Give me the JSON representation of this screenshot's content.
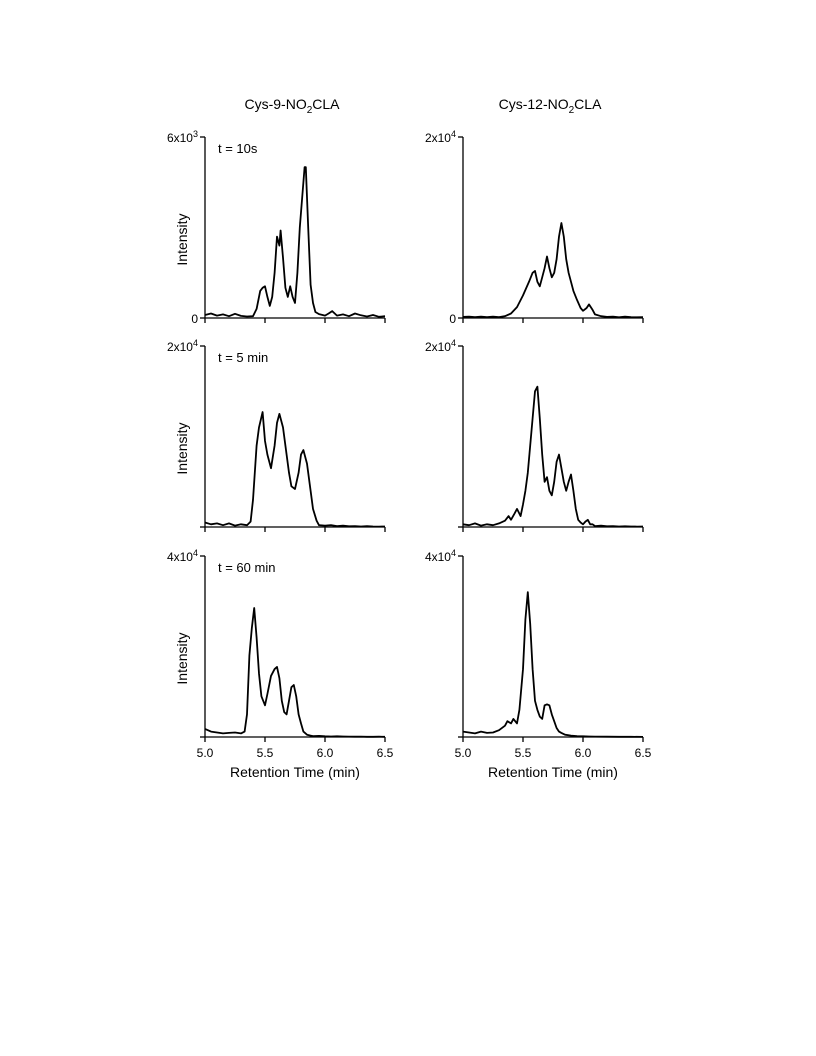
{
  "columns": [
    {
      "title_prefix": "Cys-9-NO",
      "title_sub": "2",
      "title_suffix": "CLA"
    },
    {
      "title_prefix": "Cys-12-NO",
      "title_sub": "2",
      "title_suffix": "CLA"
    }
  ],
  "y_axis_label": "Intensity",
  "x_axis_label": "Retention Time (min)",
  "chart_data": [
    {
      "type": "line",
      "column": "Cys-9-NO2CLA",
      "annotation": "t = 10s",
      "xlim": [
        5.0,
        6.5
      ],
      "ylim": [
        0,
        6000
      ],
      "y_tick_labels": [
        {
          "mantissa": "6x10",
          "exp": "3"
        },
        {
          "mantissa": "0",
          "exp": ""
        }
      ],
      "x_tick_labels": [],
      "x": [
        5.0,
        5.05,
        5.1,
        5.15,
        5.2,
        5.25,
        5.3,
        5.35,
        5.4,
        5.43,
        5.46,
        5.48,
        5.5,
        5.52,
        5.54,
        5.56,
        5.58,
        5.6,
        5.62,
        5.63,
        5.65,
        5.67,
        5.69,
        5.71,
        5.73,
        5.75,
        5.77,
        5.79,
        5.81,
        5.83,
        5.84,
        5.86,
        5.88,
        5.9,
        5.92,
        5.95,
        5.98,
        6.0,
        6.03,
        6.06,
        6.1,
        6.15,
        6.2,
        6.25,
        6.3,
        6.35,
        6.4,
        6.45,
        6.5
      ],
      "y": [
        100,
        150,
        80,
        120,
        60,
        140,
        70,
        50,
        60,
        300,
        900,
        1000,
        1050,
        700,
        400,
        700,
        1500,
        2700,
        2400,
        2900,
        2000,
        1000,
        700,
        1050,
        700,
        500,
        1500,
        3000,
        4000,
        5000,
        5000,
        3000,
        1100,
        500,
        200,
        130,
        100,
        80,
        150,
        230,
        80,
        120,
        60,
        150,
        90,
        50,
        100,
        40,
        60
      ]
    },
    {
      "type": "line",
      "column": "Cys-12-NO2CLA",
      "annotation": "",
      "xlim": [
        5.0,
        6.5
      ],
      "ylim": [
        0,
        20000
      ],
      "y_tick_labels": [
        {
          "mantissa": "2x10",
          "exp": "4"
        },
        {
          "mantissa": "0",
          "exp": ""
        }
      ],
      "x_tick_labels": [],
      "x": [
        5.0,
        5.05,
        5.1,
        5.15,
        5.2,
        5.25,
        5.3,
        5.35,
        5.4,
        5.45,
        5.5,
        5.55,
        5.58,
        5.6,
        5.62,
        5.64,
        5.66,
        5.68,
        5.7,
        5.72,
        5.74,
        5.76,
        5.78,
        5.8,
        5.82,
        5.84,
        5.86,
        5.88,
        5.9,
        5.92,
        5.95,
        5.98,
        6.0,
        6.03,
        6.05,
        6.08,
        6.1,
        6.15,
        6.2,
        6.25,
        6.3,
        6.35,
        6.4,
        6.45,
        6.5
      ],
      "y": [
        120,
        150,
        100,
        150,
        100,
        150,
        100,
        200,
        500,
        1200,
        2500,
        4000,
        5000,
        5200,
        4000,
        3500,
        4500,
        5500,
        6800,
        5500,
        4500,
        5000,
        6500,
        9000,
        10500,
        9000,
        6500,
        5000,
        4000,
        3000,
        2000,
        1100,
        800,
        1100,
        1500,
        900,
        400,
        200,
        120,
        150,
        80,
        150,
        100,
        80,
        100
      ]
    },
    {
      "type": "line",
      "column": "Cys-9-NO2CLA",
      "annotation": "t = 5 min",
      "xlim": [
        5.0,
        6.5
      ],
      "ylim": [
        0,
        20000
      ],
      "y_tick_labels": [
        {
          "mantissa": "2x10",
          "exp": "4"
        }
      ],
      "x_tick_labels": [],
      "x": [
        5.0,
        5.05,
        5.1,
        5.15,
        5.2,
        5.25,
        5.3,
        5.35,
        5.38,
        5.4,
        5.43,
        5.45,
        5.48,
        5.5,
        5.52,
        5.55,
        5.58,
        5.6,
        5.62,
        5.65,
        5.68,
        5.7,
        5.72,
        5.75,
        5.78,
        5.8,
        5.82,
        5.85,
        5.88,
        5.9,
        5.93,
        5.95,
        6.0,
        6.05,
        6.1,
        6.15,
        6.2,
        6.25,
        6.3,
        6.35,
        6.4,
        6.45,
        6.5
      ],
      "y": [
        500,
        300,
        400,
        200,
        400,
        150,
        300,
        200,
        600,
        3000,
        9000,
        11000,
        12700,
        9500,
        8000,
        6500,
        9000,
        11500,
        12500,
        11000,
        8000,
        6000,
        4500,
        4200,
        6000,
        8000,
        8500,
        7000,
        4000,
        2000,
        700,
        200,
        150,
        200,
        100,
        150,
        80,
        100,
        50,
        100,
        60,
        40,
        50
      ]
    },
    {
      "type": "line",
      "column": "Cys-12-NO2CLA",
      "annotation": "",
      "xlim": [
        5.0,
        6.5
      ],
      "ylim": [
        0,
        20000
      ],
      "y_tick_labels": [
        {
          "mantissa": "2x10",
          "exp": "4"
        }
      ],
      "x_tick_labels": [],
      "x": [
        5.0,
        5.05,
        5.1,
        5.15,
        5.2,
        5.25,
        5.3,
        5.35,
        5.38,
        5.4,
        5.43,
        5.45,
        5.48,
        5.5,
        5.52,
        5.54,
        5.56,
        5.58,
        5.6,
        5.62,
        5.64,
        5.66,
        5.68,
        5.7,
        5.72,
        5.74,
        5.76,
        5.78,
        5.8,
        5.82,
        5.84,
        5.86,
        5.88,
        5.9,
        5.92,
        5.94,
        5.96,
        5.98,
        6.0,
        6.02,
        6.04,
        6.06,
        6.08,
        6.1,
        6.15,
        6.2,
        6.25,
        6.3,
        6.35,
        6.4,
        6.45,
        6.5
      ],
      "y": [
        300,
        200,
        400,
        150,
        300,
        200,
        400,
        700,
        1200,
        800,
        1500,
        2000,
        1200,
        2500,
        4000,
        6000,
        9000,
        12000,
        15000,
        15500,
        12000,
        8000,
        5000,
        5500,
        4000,
        3500,
        5000,
        7200,
        8000,
        6500,
        5000,
        4000,
        5000,
        5800,
        4000,
        2000,
        800,
        500,
        300,
        600,
        800,
        300,
        300,
        100,
        150,
        80,
        100,
        60,
        80,
        50,
        40,
        60
      ]
    },
    {
      "type": "line",
      "column": "Cys-9-NO2CLA",
      "annotation": "t = 60 min",
      "xlim": [
        5.0,
        6.5
      ],
      "ylim": [
        0,
        40000
      ],
      "y_tick_labels": [
        {
          "mantissa": "4x10",
          "exp": "4"
        }
      ],
      "x_tick_labels": [
        "5.0",
        "5.5",
        "6.0",
        "6.5"
      ],
      "x": [
        5.0,
        5.05,
        5.1,
        5.15,
        5.2,
        5.25,
        5.3,
        5.33,
        5.35,
        5.37,
        5.39,
        5.41,
        5.43,
        5.45,
        5.47,
        5.5,
        5.52,
        5.55,
        5.58,
        5.6,
        5.62,
        5.64,
        5.66,
        5.68,
        5.7,
        5.72,
        5.74,
        5.76,
        5.78,
        5.8,
        5.82,
        5.85,
        5.88,
        5.9,
        5.95,
        6.0,
        6.05,
        6.1,
        6.15,
        6.2,
        6.25,
        6.3,
        6.35,
        6.4,
        6.45,
        6.5
      ],
      "y": [
        1800,
        1200,
        1000,
        800,
        900,
        1000,
        800,
        1200,
        5000,
        18000,
        24000,
        28500,
        22000,
        14000,
        9000,
        7000,
        9500,
        13500,
        15000,
        15500,
        13000,
        8000,
        5500,
        5000,
        8000,
        11000,
        11500,
        9000,
        5000,
        3000,
        1200,
        500,
        300,
        200,
        250,
        150,
        100,
        150,
        100,
        80,
        60,
        80,
        50,
        40,
        60,
        50
      ]
    },
    {
      "type": "line",
      "column": "Cys-12-NO2CLA",
      "annotation": "",
      "xlim": [
        5.0,
        6.5
      ],
      "ylim": [
        0,
        40000
      ],
      "y_tick_labels": [
        {
          "mantissa": "4x10",
          "exp": "4"
        }
      ],
      "x_tick_labels": [
        "5.0",
        "5.5",
        "6.0",
        "6.5"
      ],
      "x": [
        5.0,
        5.05,
        5.1,
        5.15,
        5.2,
        5.25,
        5.3,
        5.35,
        5.37,
        5.4,
        5.42,
        5.45,
        5.47,
        5.5,
        5.52,
        5.54,
        5.56,
        5.58,
        5.6,
        5.62,
        5.64,
        5.66,
        5.68,
        5.7,
        5.72,
        5.74,
        5.76,
        5.78,
        5.8,
        5.82,
        5.85,
        5.9,
        5.95,
        6.0,
        6.05,
        6.1,
        6.2,
        6.3,
        6.4,
        6.5
      ],
      "y": [
        1200,
        1000,
        800,
        1200,
        900,
        1000,
        1500,
        2500,
        3500,
        3000,
        4000,
        3000,
        6000,
        15000,
        26000,
        32000,
        25000,
        15000,
        8000,
        6000,
        4500,
        4000,
        7000,
        7200,
        7000,
        5000,
        3500,
        2000,
        1200,
        900,
        500,
        300,
        200,
        150,
        100,
        80,
        60,
        50,
        40,
        30
      ]
    }
  ]
}
